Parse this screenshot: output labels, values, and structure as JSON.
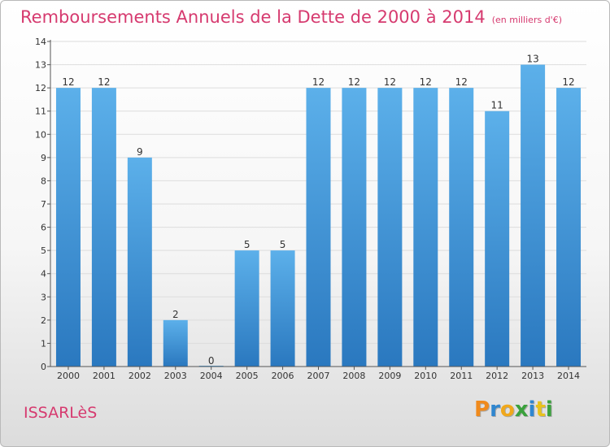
{
  "title": {
    "main": "Remboursements Annuels de la Dette de 2000 à 2014",
    "unit": "(en milliers d'€)"
  },
  "place_name": "ISSARLèS",
  "logo": {
    "text": "Proxiti",
    "letter_colors": [
      "#f08a1c",
      "#2f86cf",
      "#f0a81c",
      "#3aa13c",
      "#2f86cf",
      "#e8c21c",
      "#3aa13c"
    ]
  },
  "colors": {
    "title": "#d63a6f",
    "bar_top": "#5cb0ea",
    "bar_bottom": "#2a78bf",
    "grid": "#dddddd",
    "axis": "#555555"
  },
  "chart_data": {
    "type": "bar",
    "categories": [
      "2000",
      "2001",
      "2002",
      "2003",
      "2004",
      "2005",
      "2006",
      "2007",
      "2008",
      "2009",
      "2010",
      "2011",
      "2012",
      "2013",
      "2014"
    ],
    "values": [
      12,
      12,
      9,
      2,
      0,
      5,
      5,
      12,
      12,
      12,
      12,
      12,
      11,
      13,
      12
    ],
    "ylim": [
      0,
      14
    ],
    "yticks": [
      0,
      1,
      2,
      3,
      4,
      5,
      6,
      7,
      8,
      9,
      10,
      11,
      12,
      13,
      14
    ],
    "grid": true,
    "xlabel": "",
    "ylabel": ""
  }
}
